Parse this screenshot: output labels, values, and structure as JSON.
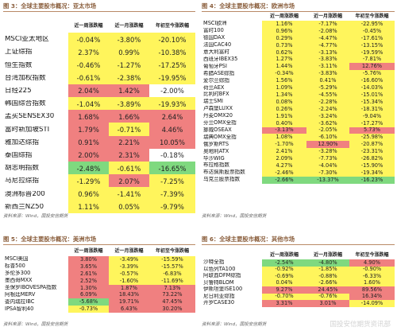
{
  "column_headers": [
    "近一周涨跌幅",
    "近一月涨跌幅",
    "年初至今涨跌幅"
  ],
  "colors": {
    "red": "#f08080",
    "yellow": "#fff55c",
    "green": "#7fd97f",
    "white": "#ffffff",
    "header_bg": "#ffffff"
  },
  "watermark": "国投安信期货资讯部",
  "chart_data": [
    {
      "type": "table",
      "title": "图 3：全球主要股市概况：亚太市场",
      "source": "资料来源：Wind，国投安信期货",
      "columns": [
        "近一周涨跌幅",
        "近一月涨跌幅",
        "年初至今涨跌幅"
      ],
      "rows": [
        {
          "name": "MSCI亚太地区",
          "values": [
            "-0.04%",
            "-3.80%",
            "-20.10%"
          ],
          "colors": [
            "yellow",
            "yellow",
            "yellow"
          ]
        },
        {
          "name": "上证综指",
          "values": [
            "2.37%",
            "0.99%",
            "-10.38%"
          ],
          "colors": [
            "yellow",
            "yellow",
            "yellow"
          ]
        },
        {
          "name": "恒生指数",
          "values": [
            "-0.46%",
            "-1.27%",
            "-17.25%"
          ],
          "colors": [
            "yellow",
            "yellow",
            "yellow"
          ]
        },
        {
          "name": "台湾加权指数",
          "values": [
            "-0.61%",
            "-2.38%",
            "-19.95%"
          ],
          "colors": [
            "yellow",
            "yellow",
            "yellow"
          ]
        },
        {
          "name": "日经225",
          "values": [
            "2.04%",
            "1.42%",
            "-2.00%"
          ],
          "colors": [
            "red",
            "red",
            "white"
          ]
        },
        {
          "name": "韩国综合指数",
          "values": [
            "-1.04%",
            "-3.89%",
            "-19.93%"
          ],
          "colors": [
            "yellow",
            "yellow",
            "yellow"
          ]
        },
        {
          "name": "孟买SENSEX30",
          "values": [
            "1.68%",
            "1.66%",
            "2.64%"
          ],
          "colors": [
            "red",
            "red",
            "red"
          ]
        },
        {
          "name": "富时新加坡STI",
          "values": [
            "1.79%",
            "-0.71%",
            "4.46%"
          ],
          "colors": [
            "red",
            "yellow",
            "red"
          ]
        },
        {
          "name": "雅加达综指",
          "values": [
            "0.91%",
            "2.21%",
            "10.05%"
          ],
          "colors": [
            "red",
            "red",
            "red"
          ]
        },
        {
          "name": "泰国综指",
          "values": [
            "2.00%",
            "2.31%",
            "-0.18%"
          ],
          "colors": [
            "red",
            "red",
            "white"
          ]
        },
        {
          "name": "胡志明指数",
          "values": [
            "-2.48%",
            "-0.61%",
            "-16.65%"
          ],
          "colors": [
            "green",
            "yellow",
            "green"
          ]
        },
        {
          "name": "马尼拉综指",
          "values": [
            "-1.29%",
            "2.07%",
            "-7.25%"
          ],
          "colors": [
            "yellow",
            "red",
            "yellow"
          ]
        },
        {
          "name": "澳洲标普200",
          "values": [
            "0.96%",
            "-1.41%",
            "-7.39%"
          ],
          "colors": [
            "yellow",
            "yellow",
            "yellow"
          ]
        },
        {
          "name": "新西兰NZ50",
          "values": [
            "1.11%",
            "0.05%",
            "-9.79%"
          ],
          "colors": [
            "yellow",
            "yellow",
            "yellow"
          ]
        }
      ]
    },
    {
      "type": "table",
      "title": "图 4：全球主要股市概况：欧洲市场",
      "source": "资料来源：Wind，国投安信期货",
      "columns": [
        "近一周涨跌幅",
        "近一月涨跌幅",
        "年初至今涨跌幅"
      ],
      "rows": [
        {
          "name": "MSCI欧洲",
          "values": [
            "1.16%",
            "-7.17%",
            "-22.95%"
          ],
          "colors": [
            "yellow",
            "yellow",
            "yellow"
          ]
        },
        {
          "name": "富时100",
          "values": [
            "0.96%",
            "-2.08%",
            "-0.45%"
          ],
          "colors": [
            "yellow",
            "yellow",
            "yellow"
          ]
        },
        {
          "name": "德国DAX",
          "values": [
            "0.29%",
            "-4.47%",
            "-17.61%"
          ],
          "colors": [
            "yellow",
            "yellow",
            "yellow"
          ]
        },
        {
          "name": "法国CAC40",
          "values": [
            "0.73%",
            "-4.77%",
            "-13.15%"
          ],
          "colors": [
            "yellow",
            "yellow",
            "yellow"
          ]
        },
        {
          "name": "意大利富时",
          "values": [
            "0.62%",
            "-3.13%",
            "-19.59%"
          ],
          "colors": [
            "yellow",
            "yellow",
            "yellow"
          ]
        },
        {
          "name": "西班牙IBEX35",
          "values": [
            "1.27%",
            "-3.83%",
            "-7.81%"
          ],
          "colors": [
            "yellow",
            "yellow",
            "yellow"
          ]
        },
        {
          "name": "葡萄牙PSI",
          "values": [
            "1.44%",
            "-3.11%",
            "12.76%"
          ],
          "colors": [
            "yellow",
            "yellow",
            "red"
          ]
        },
        {
          "name": "希腊ASE综指",
          "values": [
            "-0.34%",
            "-3.83%",
            "-5.76%"
          ],
          "colors": [
            "yellow",
            "yellow",
            "yellow"
          ]
        },
        {
          "name": "爱尔兰综指",
          "values": [
            "1.56%",
            "0.41%",
            "-16.60%"
          ],
          "colors": [
            "yellow",
            "yellow",
            "yellow"
          ]
        },
        {
          "name": "荷兰AEX",
          "values": [
            "1.09%",
            "-5.29%",
            "-14.03%"
          ],
          "colors": [
            "yellow",
            "yellow",
            "yellow"
          ]
        },
        {
          "name": "比利时BFX",
          "values": [
            "1.34%",
            "-4.55%",
            "-15.01%"
          ],
          "colors": [
            "yellow",
            "yellow",
            "yellow"
          ]
        },
        {
          "name": "瑞士SMI",
          "values": [
            "0.08%",
            "-2.28%",
            "-15.34%"
          ],
          "colors": [
            "yellow",
            "yellow",
            "yellow"
          ]
        },
        {
          "name": "卢森堡LUXX",
          "values": [
            "0.26%",
            "-2.24%",
            "-18.31%"
          ],
          "colors": [
            "yellow",
            "yellow",
            "yellow"
          ]
        },
        {
          "name": "丹麦OMX20",
          "values": [
            "1.91%",
            "-3.24%",
            "-9.04%"
          ],
          "colors": [
            "yellow",
            "yellow",
            "yellow"
          ]
        },
        {
          "name": "芬兰OMX全指",
          "values": [
            "0.40%",
            "-3.62%",
            "-17.27%"
          ],
          "colors": [
            "yellow",
            "yellow",
            "yellow"
          ]
        },
        {
          "name": "挪威OSEAX",
          "values": [
            "-3.13%",
            "-2.05%",
            "5.73%"
          ],
          "colors": [
            "red",
            "yellow",
            "red"
          ]
        },
        {
          "name": "瑞典OMX全指",
          "values": [
            "1.08%",
            "-6.10%",
            "-25.98%"
          ],
          "colors": [
            "yellow",
            "yellow",
            "yellow"
          ]
        },
        {
          "name": "俄罗斯RTS",
          "values": [
            "-1.70%",
            "12.90%",
            "-20.87%"
          ],
          "colors": [
            "yellow",
            "red",
            "yellow"
          ]
        },
        {
          "name": "奥地利ATX",
          "values": [
            "2.41%",
            "-3.28%",
            "-23.31%"
          ],
          "colors": [
            "yellow",
            "yellow",
            "yellow"
          ]
        },
        {
          "name": "华沙WIG",
          "values": [
            "2.09%",
            "-7.73%",
            "-26.82%"
          ],
          "colors": [
            "yellow",
            "yellow",
            "yellow"
          ]
        },
        {
          "name": "布拉格指数",
          "values": [
            "4.27%",
            "-4.04%",
            "-15.90%"
          ],
          "colors": [
            "yellow",
            "yellow",
            "yellow"
          ]
        },
        {
          "name": "布达佩斯股票指数",
          "values": [
            "-2.46%",
            "-7.30%",
            "-19.34%"
          ],
          "colors": [
            "yellow",
            "yellow",
            "yellow"
          ]
        },
        {
          "name": "乌克兰股票指数",
          "values": [
            "-2.66%",
            "-13.37%",
            "-16.23%"
          ],
          "colors": [
            "green",
            "green",
            "green"
          ]
        }
      ]
    },
    {
      "type": "table",
      "title": "图 5：全球主要股市概况：美洲市场",
      "source": "资料来源：Wind，国投安信期货",
      "columns": [
        "近一周涨跌幅",
        "近一月涨跌幅",
        "年初至今涨跌幅"
      ],
      "rows": [
        {
          "name": "MSCI美国",
          "values": [
            "3.80%",
            "-3.49%",
            "-15.59%"
          ],
          "colors": [
            "red",
            "yellow",
            "yellow"
          ]
        },
        {
          "name": "标普500",
          "values": [
            "3.65%",
            "-3.39%",
            "-15.57%"
          ],
          "colors": [
            "red",
            "yellow",
            "yellow"
          ]
        },
        {
          "name": "多伦多300",
          "values": [
            "2.61%",
            "-0.57%",
            "-6.83%"
          ],
          "colors": [
            "red",
            "yellow",
            "yellow"
          ]
        },
        {
          "name": "墨西哥MXX",
          "values": [
            "2.52%",
            "-1.60%",
            "-11.69%"
          ],
          "colors": [
            "red",
            "yellow",
            "yellow"
          ]
        },
        {
          "name": "圣保罗IBOVESPA指数",
          "values": [
            "1.30%",
            "1.87%",
            "7.13%"
          ],
          "colors": [
            "red",
            "red",
            "red"
          ]
        },
        {
          "name": "阿根廷MERV",
          "values": [
            "6.09%",
            "18.43%",
            "73.22%"
          ],
          "colors": [
            "red",
            "red",
            "red"
          ]
        },
        {
          "name": "委内瑞拉IBC",
          "values": [
            "-5.68%",
            "19.71%",
            "47.45%"
          ],
          "colors": [
            "green",
            "red",
            "red"
          ]
        },
        {
          "name": "IPSA智利40",
          "values": [
            "-0.73%",
            "6.43%",
            "30.20%"
          ],
          "colors": [
            "yellow",
            "red",
            "red"
          ]
        }
      ]
    },
    {
      "type": "table",
      "title": "图 6：全球主要股市概况：其他市场",
      "source": "资料来源：Wind，国投安信期货",
      "columns": [
        "近一周涨跌幅",
        "近一月涨跌幅",
        "年初至今涨跌幅"
      ],
      "rows": [
        {
          "name": "沙特全指",
          "values": [
            "-2.54%",
            "-4.80%",
            "4.90%"
          ],
          "colors": [
            "green",
            "green",
            "red"
          ]
        },
        {
          "name": "以色列TA100",
          "values": [
            "-0.92%",
            "-1.85%",
            "-0.90%"
          ],
          "colors": [
            "yellow",
            "yellow",
            "yellow"
          ]
        },
        {
          "name": "阿联酋DFM综指",
          "values": [
            "-0.69%",
            "-0.88%",
            "-6.33%"
          ],
          "colors": [
            "yellow",
            "yellow",
            "yellow"
          ]
        },
        {
          "name": "贝鲁特BLOM",
          "values": [
            "0.04%",
            "-2.66%",
            "1.60%"
          ],
          "colors": [
            "yellow",
            "yellow",
            "yellow"
          ]
        },
        {
          "name": "伊斯坦堡ISE100",
          "values": [
            "9.27%",
            "24.45%",
            "89.56%"
          ],
          "colors": [
            "red",
            "red",
            "red"
          ]
        },
        {
          "name": "尼日利亚综指",
          "values": [
            "-0.70%",
            "-0.76%",
            "16.34%"
          ],
          "colors": [
            "yellow",
            "yellow",
            "red"
          ]
        },
        {
          "name": "开罗CASE30",
          "values": [
            "3.31%",
            "3.01%",
            "-14.09%"
          ],
          "colors": [
            "red",
            "red",
            "yellow"
          ]
        }
      ]
    }
  ]
}
